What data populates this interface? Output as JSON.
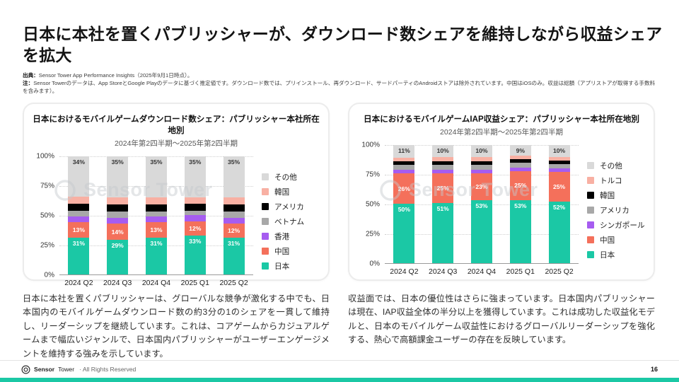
{
  "slide": {
    "title": "日本に本社を置くパブリッシャーが、ダウンロード数シェアを維持しながら収益シェアを拡大",
    "source_label": "出典：",
    "source_text": "Sensor Tower App Performance Insights（2025年9月1日時点）。",
    "note_label": "注：",
    "note_text": "Sensor Towerのデータは、App StoreとGoogle Playのデータに基づく推定値です。ダウンロード数では、プリインストール、再ダウンロード、サードパーティのAndroidストアは除外されています。中国はiOSのみ。収益は総額（アプリストアが取得する手数料を含みます）。"
  },
  "colors": {
    "teal": "#1BC8A5",
    "coral": "#F4705B",
    "purple": "#A65CF0",
    "mid_gray": "#A8A8A8",
    "black": "#000000",
    "salmon": "#F8B0A3",
    "light_gray": "#D9D9D9",
    "accent_strip": "#1BC8A5"
  },
  "watermark_text": "Sensor Tower",
  "chart_data": [
    {
      "type": "bar",
      "stacked": true,
      "title": "日本におけるモバイルゲームダウンロード数シェア：パブリッシャー本社所在地別",
      "subtitle": "2024年第2四半期〜2025年第2四半期",
      "categories": [
        "2024 Q2",
        "2024 Q3",
        "2024 Q4",
        "2025 Q1",
        "2025 Q2"
      ],
      "ylim": [
        0,
        100
      ],
      "yticks": [
        "0%",
        "25%",
        "50%",
        "75%",
        "100%"
      ],
      "grid": "dotted-horizontal",
      "legend_position": "right",
      "series": [
        {
          "name": "日本",
          "color": "#1BC8A5",
          "values": [
            31,
            29,
            31,
            33,
            31
          ],
          "labeled": true,
          "label_pos": "top",
          "label_color": "#ffffff"
        },
        {
          "name": "中国",
          "color": "#F4705B",
          "values": [
            13,
            14,
            13,
            12,
            12
          ],
          "labeled": true,
          "label_pos": "center",
          "label_color": "#ffffff"
        },
        {
          "name": "香港",
          "color": "#A65CF0",
          "values": [
            5,
            5,
            5,
            5,
            5
          ],
          "labeled": false
        },
        {
          "name": "ベトナム",
          "color": "#A8A8A8",
          "values": [
            5,
            5,
            4,
            4,
            5
          ],
          "labeled": false
        },
        {
          "name": "アメリカ",
          "color": "#000000",
          "values": [
            6,
            6,
            6,
            6,
            6
          ],
          "labeled": false
        },
        {
          "name": "韓国",
          "color": "#F8B0A3",
          "values": [
            6,
            6,
            6,
            5,
            6
          ],
          "labeled": false
        },
        {
          "name": "その他",
          "color": "#D9D9D9",
          "values": [
            34,
            35,
            35,
            35,
            35
          ],
          "labeled": true,
          "label_pos": "top",
          "label_color": "#333333"
        }
      ]
    },
    {
      "type": "bar",
      "stacked": true,
      "title": "日本におけるモバイルゲームIAP収益シェア：パブリッシャー本社所在地別",
      "subtitle": "2024年第2四半期〜2025年第2四半期",
      "categories": [
        "2024 Q2",
        "2024 Q3",
        "2024 Q4",
        "2025 Q1",
        "2025 Q2"
      ],
      "ylim": [
        0,
        100
      ],
      "yticks": [
        "0%",
        "25%",
        "50%",
        "75%",
        "100%"
      ],
      "grid": "dotted-horizontal",
      "legend_position": "right",
      "series": [
        {
          "name": "日本",
          "color": "#1BC8A5",
          "values": [
            50,
            51,
            53,
            53,
            52
          ],
          "labeled": true,
          "label_pos": "top",
          "label_color": "#ffffff"
        },
        {
          "name": "中国",
          "color": "#F4705B",
          "values": [
            26,
            25,
            23,
            25,
            25
          ],
          "labeled": true,
          "label_pos": "center",
          "label_color": "#ffffff"
        },
        {
          "name": "シンガポール",
          "color": "#A65CF0",
          "values": [
            3,
            3,
            3,
            3,
            3
          ],
          "labeled": false
        },
        {
          "name": "アメリカ",
          "color": "#A8A8A8",
          "values": [
            4,
            4,
            4,
            4,
            4
          ],
          "labeled": false
        },
        {
          "name": "韓国",
          "color": "#000000",
          "values": [
            3,
            3,
            3,
            3,
            3
          ],
          "labeled": false
        },
        {
          "name": "トルコ",
          "color": "#F8B0A3",
          "values": [
            3,
            4,
            4,
            3,
            3
          ],
          "labeled": false
        },
        {
          "name": "その他",
          "color": "#D9D9D9",
          "values": [
            11,
            10,
            10,
            9,
            10
          ],
          "labeled": true,
          "label_pos": "top",
          "label_color": "#333333"
        }
      ]
    }
  ],
  "paragraphs": {
    "left": "日本に本社を置くパブリッシャーは、グローバルな競争が激化する中でも、日本国内のモバイルゲームダウンロード数の約3分の1のシェアを一貫して維持し、リーダーシップを継続しています。これは、コアゲームからカジュアルゲームまで幅広いジャンルで、日本国内パブリッシャーがユーザーエンゲージメントを維持する強みを示しています。",
    "right": "収益面では、日本の優位性はさらに強まっています。日本国内パブリッシャーは現在、IAP収益全体の半分以上を獲得しています。これは成功した収益化モデルと、日本のモバイルゲーム収益性におけるグローバルリーダーシップを強化する、熱心で高額課金ユーザーの存在を反映しています。"
  },
  "footer": {
    "brand_bold": "Sensor",
    "brand_light": "Tower",
    "rights": "· All Rights Reserved",
    "page_number": "16"
  }
}
